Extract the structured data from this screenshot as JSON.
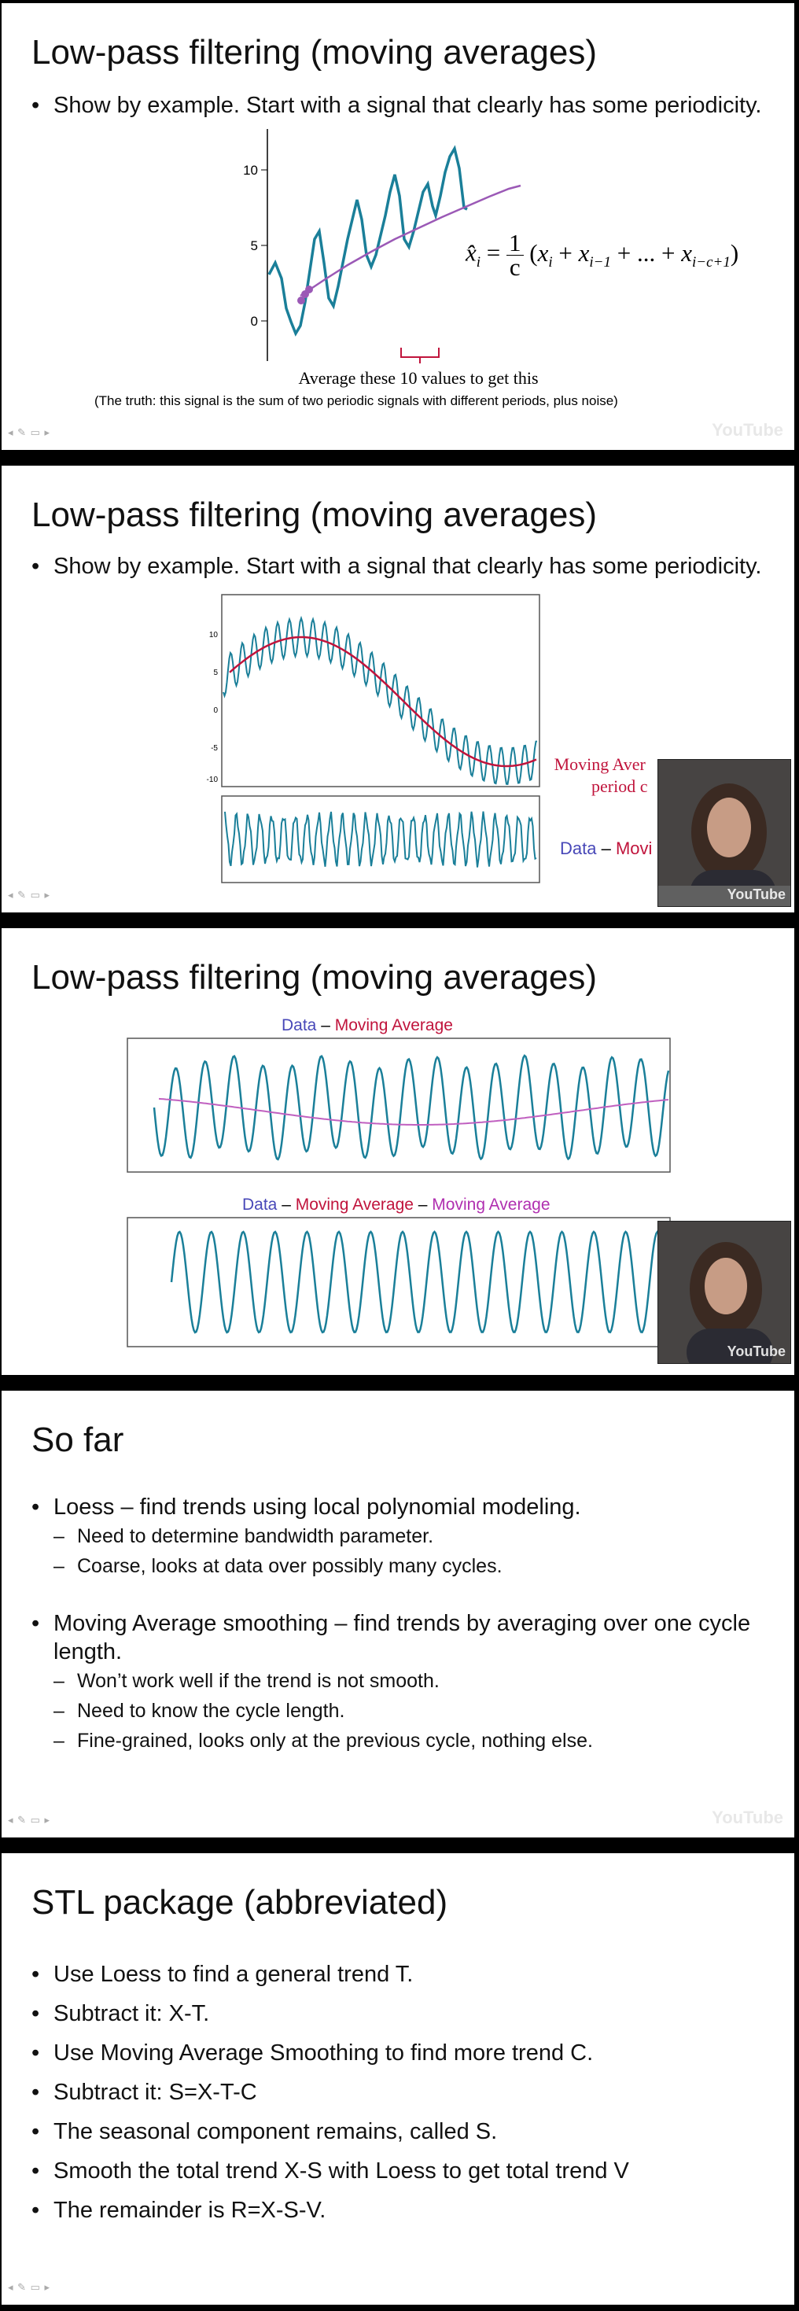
{
  "slides": [
    {
      "title": "Low-pass filtering (moving averages)",
      "bullet": "Show by example. Start with a signal that clearly has some periodicity.",
      "formula_lhs": "x̂",
      "formula_sub": "i",
      "formula_frac_num": "1",
      "formula_frac_den": "c",
      "formula_rhs": "(x + x + ... + x )",
      "formula_subs": [
        "i",
        "i−1",
        "i−c+1"
      ],
      "chart_caption": "Average these 10 values to get this",
      "truth_note": "(The truth: this signal is the sum of two periodic signals with different periods, plus noise)",
      "youtube": "YouTube",
      "chart_data": {
        "type": "line",
        "yticks": [
          "10",
          "5",
          "0"
        ],
        "ylim": [
          -2,
          12
        ],
        "series_colors": {
          "data": "#1a7f99",
          "avg": "#9b59b6"
        }
      }
    },
    {
      "title": "Low-pass filtering (moving averages)",
      "bullet": "Show by example. Start with a signal that clearly has some periodicity.",
      "label_ma_1": "Moving Aver",
      "label_ma_2": "period c",
      "label_data": "Data",
      "label_dash": " – ",
      "label_movi": "Movi",
      "youtube": "YouTube",
      "chart_data": {
        "type": "line",
        "yticks": [
          "10",
          "5",
          "0",
          "-5",
          "-10"
        ],
        "ylim": [
          -11,
          12
        ],
        "series_colors": {
          "data": "#1a7f99",
          "avg": "#c0143c"
        }
      }
    },
    {
      "title": "Low-pass filtering (moving averages)",
      "legend1_data": "Data",
      "legend1_dash": " – ",
      "legend1_ma": "Moving Average",
      "legend2_data": "Data",
      "legend2_dash1": " – ",
      "legend2_ma1": "Moving Average",
      "legend2_dash2": " – ",
      "legend2_ma2": "Moving Average",
      "youtube": "YouTube",
      "chart_data": {
        "type": "line",
        "series_colors": {
          "data": "#1a7f99",
          "avg": "#c060c0"
        }
      }
    },
    {
      "title": "So far",
      "items": [
        {
          "level": 1,
          "text": "Loess – find trends using local polynomial modeling."
        },
        {
          "level": 2,
          "text": "Need to determine bandwidth parameter."
        },
        {
          "level": 2,
          "text": "Coarse, looks at data over possibly many cycles."
        },
        {
          "level": 1,
          "text": "Moving Average smoothing – find trends by averaging over one cycle length."
        },
        {
          "level": 2,
          "text": "Won’t work well if the trend is not smooth."
        },
        {
          "level": 2,
          "text": "Need to know the cycle length."
        },
        {
          "level": 2,
          "text": "Fine-grained, looks only at the previous cycle, nothing else."
        }
      ],
      "youtube": "YouTube"
    },
    {
      "title": "STL package (abbreviated)",
      "items": [
        "Use Loess to find a general trend T.",
        "Subtract it: X-T.",
        "Use Moving Average Smoothing to find more trend C.",
        "Subtract it: S=X-T-C",
        "The seasonal component remains, called S.",
        "Smooth the total trend X-S with Loess to get total trend V",
        "The remainder is R=X-S-V."
      ]
    }
  ]
}
